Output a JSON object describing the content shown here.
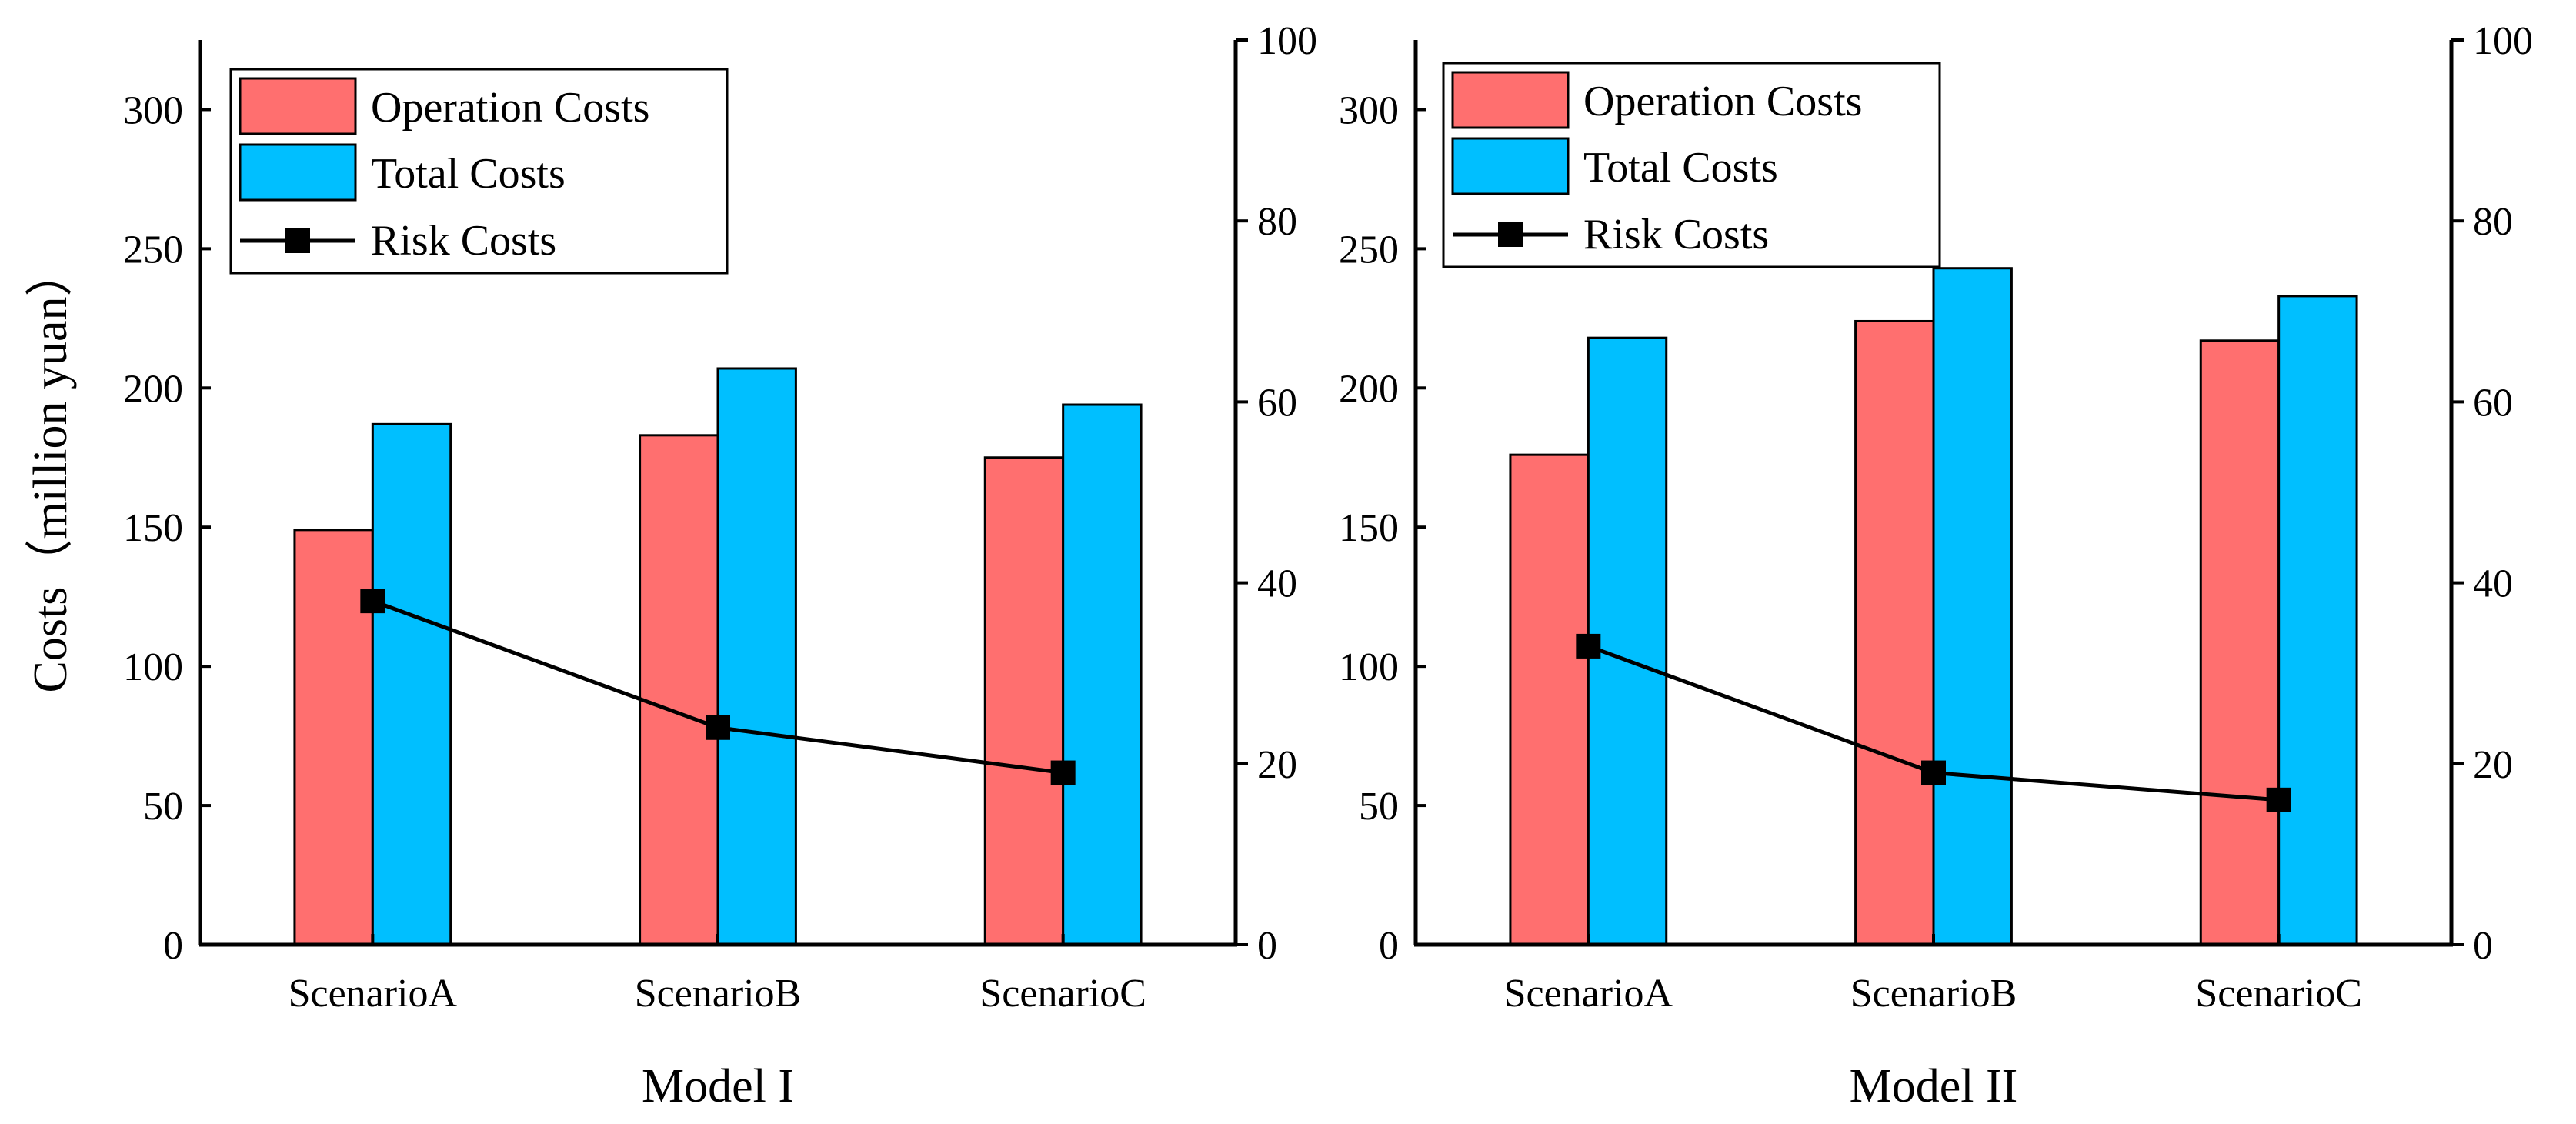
{
  "y_axis_label": "Costs（million yuan）",
  "legend": {
    "operation": "Operation Costs",
    "total": "Total Costs",
    "risk": "Risk Costs"
  },
  "colors": {
    "operation": "#FF6F6F",
    "total": "#00BFFF",
    "risk": "#000000"
  },
  "chart_data": [
    {
      "type": "bar",
      "title": "Model I",
      "categories": [
        "ScenarioA",
        "ScenarioB",
        "ScenarioC"
      ],
      "series": [
        {
          "name": "Operation Costs",
          "axis": "left",
          "values": [
            149,
            183,
            175
          ]
        },
        {
          "name": "Total Costs",
          "axis": "left",
          "values": [
            187,
            207,
            194
          ]
        },
        {
          "name": "Risk Costs",
          "axis": "right",
          "kind": "line",
          "values": [
            38,
            24,
            19
          ]
        }
      ],
      "xlabel": "Model I",
      "ylabel": "Costs（million yuan）",
      "ylim": [
        0,
        325
      ],
      "yticks": [
        0,
        50,
        100,
        150,
        200,
        250,
        300
      ],
      "y2lim": [
        0,
        100
      ],
      "y2ticks": [
        0,
        20,
        40,
        60,
        80,
        100
      ],
      "legend_position": "top-left"
    },
    {
      "type": "bar",
      "title": "Model II",
      "categories": [
        "ScenarioA",
        "ScenarioB",
        "ScenarioC"
      ],
      "series": [
        {
          "name": "Operation Costs",
          "axis": "left",
          "values": [
            176,
            224,
            217
          ]
        },
        {
          "name": "Total Costs",
          "axis": "left",
          "values": [
            218,
            243,
            233
          ]
        },
        {
          "name": "Risk Costs",
          "axis": "right",
          "kind": "line",
          "values": [
            33,
            19,
            16
          ]
        }
      ],
      "xlabel": "Model II",
      "ylabel": "",
      "ylim": [
        0,
        325
      ],
      "yticks": [
        0,
        50,
        100,
        150,
        200,
        250,
        300
      ],
      "y2lim": [
        0,
        100
      ],
      "y2ticks": [
        0,
        20,
        40,
        60,
        80,
        100
      ],
      "legend_position": "top-left"
    }
  ]
}
